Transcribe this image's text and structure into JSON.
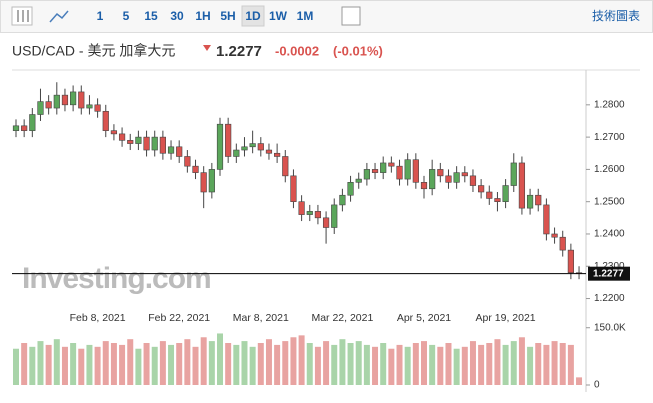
{
  "toolbar": {
    "intervals": [
      "1",
      "5",
      "15",
      "30",
      "1H",
      "5H",
      "1D",
      "1W",
      "1M"
    ],
    "link": "技術圖表"
  },
  "watermark": "Investing.com",
  "chart_data": {
    "type": "candlestick",
    "title": "USD/CAD - 美元 加拿大元",
    "last": 1.2277,
    "change": -0.0002,
    "change_pct": "(-0.01%)",
    "up_color": "#5ba65b",
    "down_color": "#d9534f",
    "volume_up_color": "#a9d4a9",
    "volume_down_color": "#e8a3a1",
    "categories": [
      null,
      null,
      null,
      null,
      null,
      null,
      null,
      null,
      null,
      null,
      "Feb 8, 2021",
      null,
      null,
      null,
      null,
      null,
      null,
      null,
      null,
      null,
      "Feb 22, 2021",
      null,
      null,
      null,
      null,
      null,
      null,
      null,
      null,
      null,
      "Mar 8, 2021",
      null,
      null,
      null,
      null,
      null,
      null,
      null,
      null,
      null,
      "Mar 22, 2021",
      null,
      null,
      null,
      null,
      null,
      null,
      null,
      null,
      null,
      "Apr 5, 2021",
      null,
      null,
      null,
      null,
      null,
      null,
      null,
      null,
      null,
      "Apr 19, 2021",
      null,
      null,
      null,
      null,
      null,
      null,
      null,
      null,
      null
    ],
    "open": [
      1.272,
      1.2735,
      1.272,
      1.277,
      1.281,
      1.279,
      1.283,
      1.28,
      1.284,
      1.279,
      1.28,
      1.278,
      1.272,
      1.271,
      1.269,
      1.268,
      1.27,
      1.266,
      1.27,
      1.265,
      1.267,
      1.264,
      1.261,
      1.259,
      1.253,
      1.26,
      1.274,
      1.264,
      1.266,
      1.267,
      1.268,
      1.266,
      1.265,
      1.264,
      1.258,
      1.25,
      1.246,
      1.247,
      1.245,
      1.242,
      1.249,
      1.252,
      1.256,
      1.257,
      1.26,
      1.259,
      1.262,
      1.261,
      1.257,
      1.263,
      1.256,
      1.254,
      1.26,
      1.258,
      1.256,
      1.259,
      1.258,
      1.255,
      1.253,
      1.251,
      1.25,
      1.255,
      1.262,
      1.248,
      1.252,
      1.249,
      1.24,
      1.239,
      1.235,
      1.228
    ],
    "high": [
      1.2755,
      1.2755,
      1.279,
      1.285,
      1.283,
      1.287,
      1.285,
      1.286,
      1.286,
      1.283,
      1.282,
      1.28,
      1.274,
      1.273,
      1.271,
      1.272,
      1.272,
      1.272,
      1.272,
      1.269,
      1.269,
      1.266,
      1.263,
      1.261,
      1.262,
      1.276,
      1.276,
      1.268,
      1.27,
      1.272,
      1.27,
      1.268,
      1.268,
      1.266,
      1.26,
      1.252,
      1.249,
      1.249,
      1.247,
      1.251,
      1.254,
      1.258,
      1.259,
      1.262,
      1.262,
      1.264,
      1.264,
      1.263,
      1.265,
      1.265,
      1.258,
      1.263,
      1.262,
      1.26,
      1.261,
      1.261,
      1.26,
      1.257,
      1.255,
      1.253,
      1.257,
      1.265,
      1.264,
      1.254,
      1.254,
      1.251,
      1.242,
      1.241,
      1.237,
      1.23
    ],
    "low": [
      1.27,
      1.27,
      1.27,
      1.275,
      1.277,
      1.277,
      1.278,
      1.278,
      1.277,
      1.277,
      1.276,
      1.27,
      1.269,
      1.267,
      1.266,
      1.266,
      1.264,
      1.264,
      1.263,
      1.263,
      1.262,
      1.259,
      1.257,
      1.248,
      1.251,
      1.258,
      1.262,
      1.262,
      1.264,
      1.265,
      1.264,
      1.263,
      1.262,
      1.256,
      1.248,
      1.244,
      1.244,
      1.243,
      1.237,
      1.24,
      1.247,
      1.25,
      1.254,
      1.255,
      1.257,
      1.257,
      1.259,
      1.255,
      1.255,
      1.254,
      1.251,
      1.252,
      1.256,
      1.254,
      1.254,
      1.256,
      1.253,
      1.251,
      1.249,
      1.247,
      1.248,
      1.253,
      1.246,
      1.246,
      1.247,
      1.238,
      1.237,
      1.233,
      1.226,
      1.226
    ],
    "close": [
      1.2735,
      1.272,
      1.277,
      1.281,
      1.279,
      1.283,
      1.28,
      1.284,
      1.279,
      1.28,
      1.278,
      1.272,
      1.271,
      1.269,
      1.268,
      1.27,
      1.266,
      1.27,
      1.265,
      1.267,
      1.264,
      1.261,
      1.259,
      1.253,
      1.26,
      1.274,
      1.264,
      1.266,
      1.267,
      1.268,
      1.266,
      1.265,
      1.264,
      1.258,
      1.25,
      1.246,
      1.247,
      1.245,
      1.242,
      1.249,
      1.252,
      1.256,
      1.257,
      1.26,
      1.259,
      1.262,
      1.261,
      1.257,
      1.263,
      1.256,
      1.254,
      1.26,
      1.258,
      1.256,
      1.259,
      1.258,
      1.255,
      1.253,
      1.251,
      1.25,
      1.255,
      1.262,
      1.248,
      1.252,
      1.249,
      1.24,
      1.239,
      1.235,
      1.228,
      1.2277
    ],
    "ylim": [
      1.218,
      1.288
    ],
    "yticks": [
      {
        "value": 1.28,
        "label": "1.2800"
      },
      {
        "value": 1.27,
        "label": "1.2700"
      },
      {
        "value": 1.26,
        "label": "1.2600"
      },
      {
        "value": 1.25,
        "label": "1.2500"
      },
      {
        "value": 1.24,
        "label": "1.2400"
      },
      {
        "value": 1.23,
        "label": "1.2300"
      },
      {
        "value": 1.22,
        "label": "1.2200"
      }
    ],
    "volume": {
      "values": [
        95000,
        110000,
        100000,
        115000,
        105000,
        120000,
        100000,
        110000,
        95000,
        105000,
        100000,
        115000,
        110000,
        105000,
        120000,
        95000,
        110000,
        100000,
        115000,
        105000,
        110000,
        120000,
        100000,
        125000,
        115000,
        135000,
        110000,
        105000,
        115000,
        100000,
        110000,
        120000,
        105000,
        115000,
        125000,
        130000,
        110000,
        100000,
        115000,
        105000,
        120000,
        110000,
        115000,
        105000,
        100000,
        110000,
        95000,
        105000,
        100000,
        110000,
        115000,
        105000,
        100000,
        110000,
        95000,
        100000,
        115000,
        105000,
        110000,
        120000,
        105000,
        115000,
        125000,
        100000,
        110000,
        105000,
        115000,
        110000,
        105000,
        20000
      ],
      "ylim": [
        0,
        165000
      ],
      "yticks": [
        {
          "value": 150000,
          "label": "150.0K"
        },
        0
      ]
    }
  }
}
